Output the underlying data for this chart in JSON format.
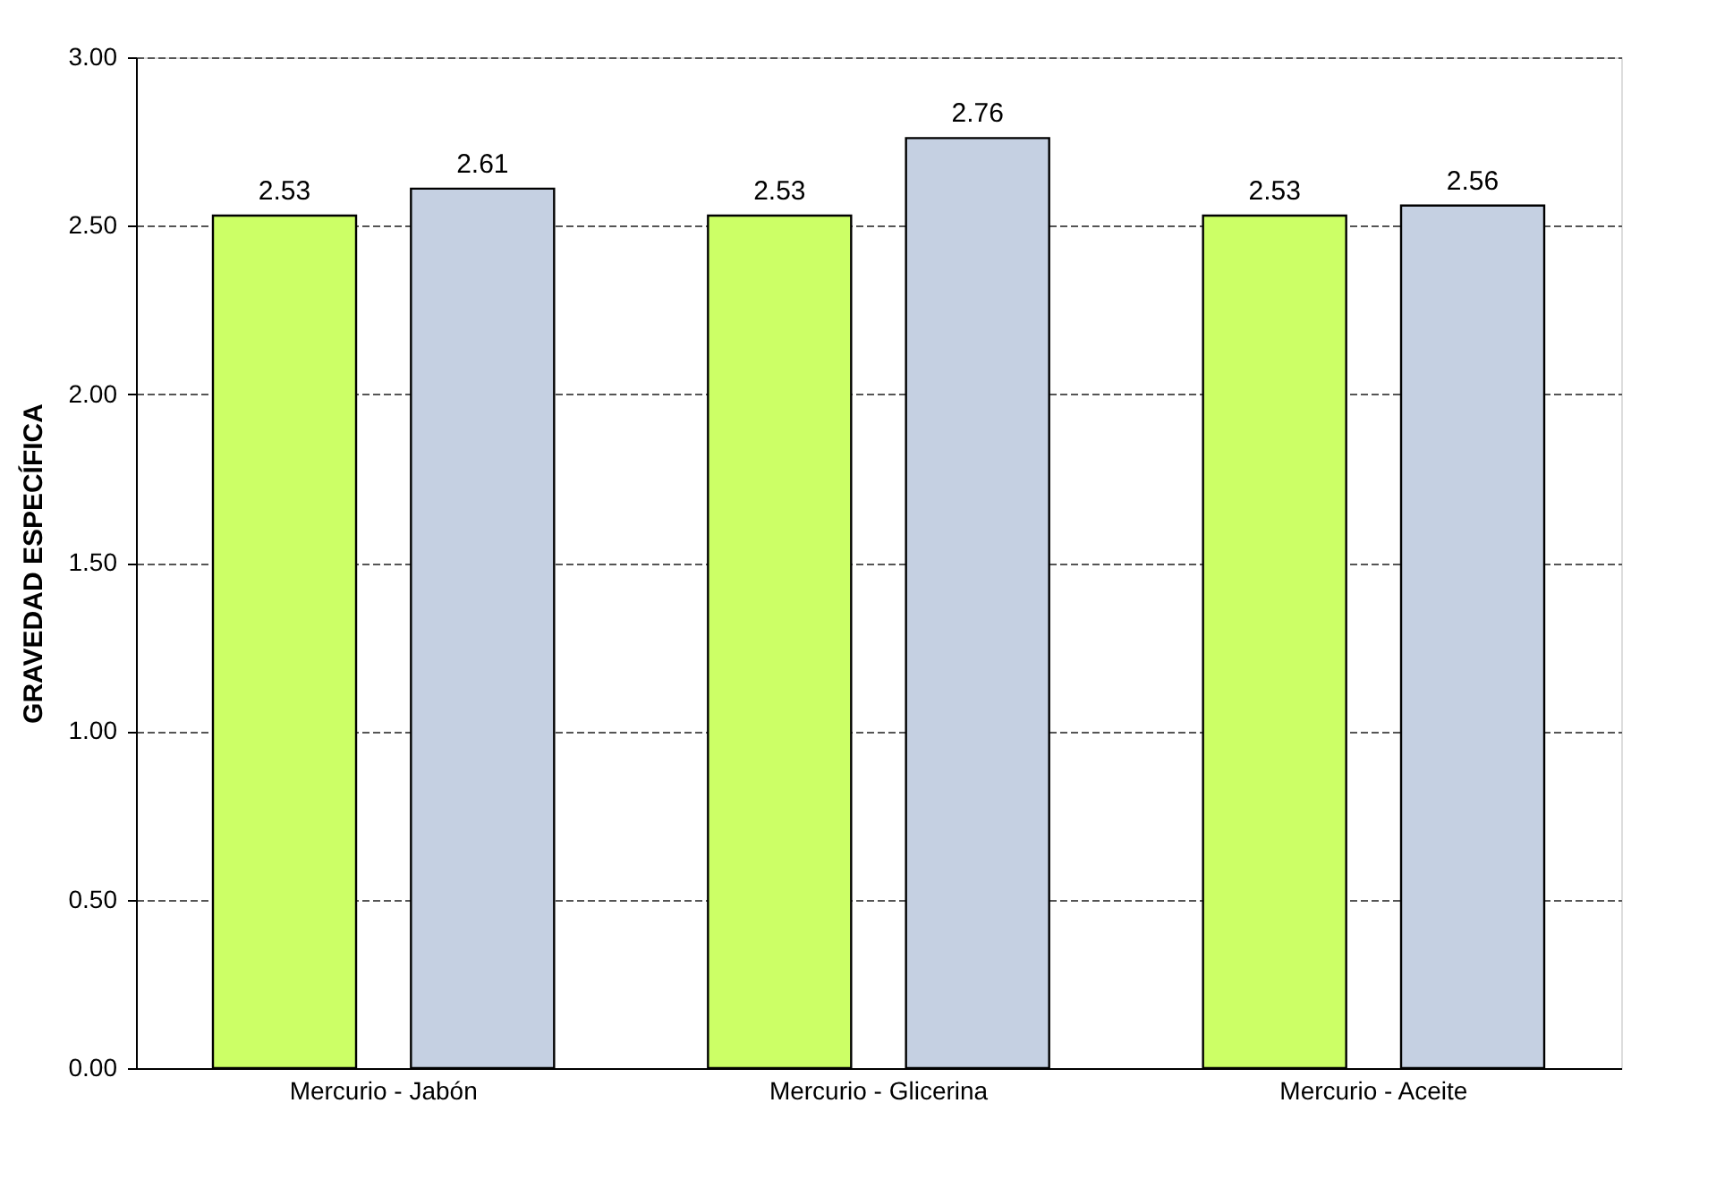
{
  "chart_data": {
    "type": "bar",
    "ylabel": "GRAVEDAD ESPECÍFICA",
    "categories": [
      "Mercurio - Jabón",
      "Mercurio - Glicerina",
      "Mercurio - Aceite"
    ],
    "series": [
      {
        "color": "#ccff66",
        "values": [
          2.53,
          2.53,
          2.53
        ]
      },
      {
        "color": "#c5d0e2",
        "values": [
          2.61,
          2.76,
          2.56
        ]
      }
    ],
    "ylim": [
      0,
      3
    ],
    "yticks": [
      {
        "value": 0,
        "label": "0.00"
      },
      {
        "value": 0.5,
        "label": "0.50"
      },
      {
        "value": 1,
        "label": "1.00"
      },
      {
        "value": 1.5,
        "label": "1.50"
      },
      {
        "value": 2,
        "label": "2.00"
      },
      {
        "value": 2.5,
        "label": "2.50"
      },
      {
        "value": 3,
        "label": "3.00"
      }
    ],
    "grid": "y",
    "line_style": "dashed",
    "data_labels": true
  }
}
